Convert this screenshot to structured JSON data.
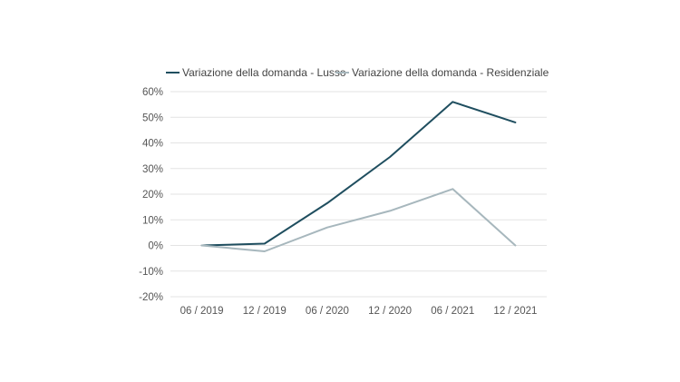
{
  "chart_data": {
    "type": "line",
    "title": "",
    "xlabel": "",
    "ylabel": "",
    "categories": [
      "06 / 2019",
      "12 / 2019",
      "06 / 2020",
      "12 / 2020",
      "06 / 2021",
      "12 / 2021"
    ],
    "y_ticks": [
      "60%",
      "50%",
      "40%",
      "30%",
      "20%",
      "10%",
      "0%",
      "-10%",
      "-20%"
    ],
    "y_tick_values": [
      60,
      50,
      40,
      30,
      20,
      10,
      0,
      -10,
      -20
    ],
    "ylim": [
      -20,
      60
    ],
    "grid": "horizontal",
    "legend_position": "top",
    "series": [
      {
        "name": "Variazione della domanda - Lusso",
        "color": "#1f4e5f",
        "values": [
          0,
          0.7,
          16.5,
          34.5,
          56,
          48
        ]
      },
      {
        "name": "Variazione della domanda - Residenziale",
        "color": "#a7b7bd",
        "values": [
          0,
          -2.3,
          7,
          13.5,
          22,
          0
        ]
      }
    ]
  }
}
